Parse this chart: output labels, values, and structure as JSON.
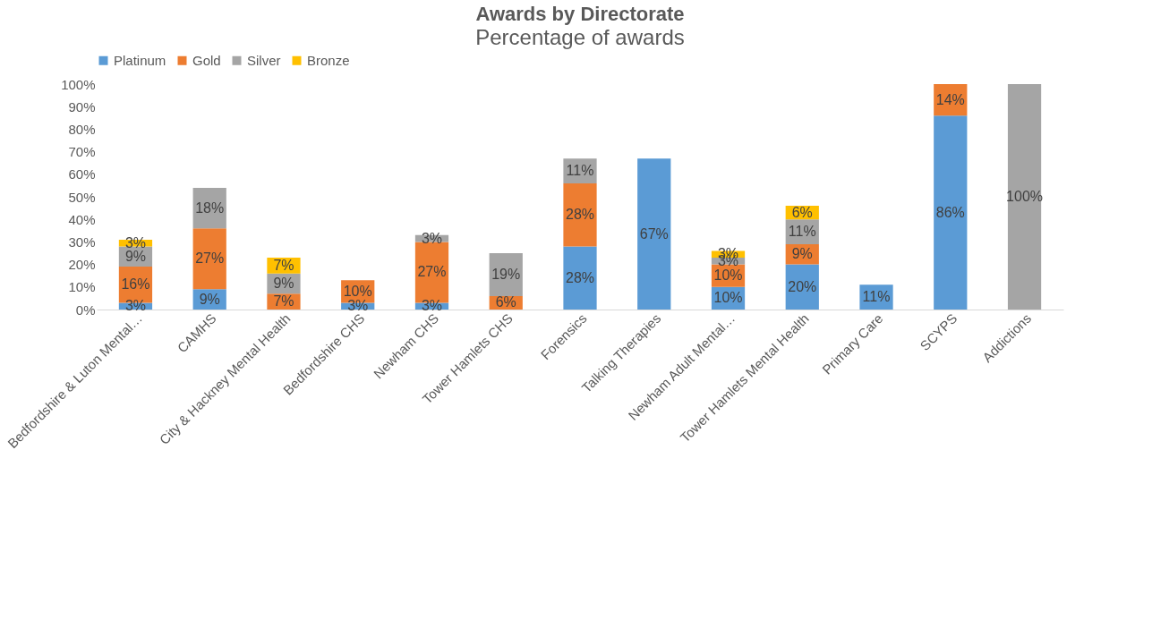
{
  "chart_data": {
    "type": "bar",
    "stacked": true,
    "title": "Awards by Directorate",
    "subtitle": "Percentage of awards",
    "categories": [
      "Bedfordshire & Luton Mental…",
      "CAMHS",
      "City & Hackney Mental Health",
      "Bedfordshire CHS",
      "Newham CHS",
      "Tower Hamlets CHS",
      "Forensics",
      "Talking Therapies",
      "Newham Adult Mental…",
      "Tower Hamlets Mental Health",
      "Primary Care",
      "SCYPS",
      "Addictions"
    ],
    "series": [
      {
        "name": "Platinum",
        "color": "#5b9bd5",
        "values": [
          3,
          9,
          null,
          3,
          3,
          null,
          28,
          67,
          10,
          20,
          11,
          86,
          null
        ],
        "value_labels": [
          "3%",
          "9%",
          null,
          "3%",
          "3%",
          null,
          "28%",
          "67%",
          "10%",
          "20%",
          "11%",
          "86%",
          null
        ]
      },
      {
        "name": "Gold",
        "color": "#ed7d31",
        "values": [
          16,
          27,
          7,
          10,
          27,
          6,
          28,
          null,
          10,
          9,
          null,
          14,
          null
        ],
        "value_labels": [
          "16%",
          "27%",
          "7%",
          "10%",
          "27%",
          "6%",
          "28%",
          null,
          "10%",
          "9%",
          null,
          "14%",
          null
        ]
      },
      {
        "name": "Silver",
        "color": "#a5a5a5",
        "values": [
          9,
          18,
          9,
          null,
          3,
          19,
          11,
          null,
          3,
          11,
          null,
          null,
          100
        ],
        "value_labels": [
          "9%",
          "18%",
          "9%",
          null,
          "3%",
          "19%",
          "11%",
          null,
          "3%",
          "11%",
          null,
          null,
          "100%"
        ]
      },
      {
        "name": "Bronze",
        "color": "#ffc000",
        "values": [
          3,
          null,
          7,
          null,
          null,
          null,
          null,
          null,
          3,
          6,
          null,
          null,
          null
        ],
        "value_labels": [
          "3%",
          null,
          "7%",
          null,
          null,
          null,
          null,
          null,
          "3%",
          "6%",
          null,
          null,
          null
        ]
      }
    ],
    "ylim": [
      0,
      100
    ],
    "yticks": [
      {
        "value": 0,
        "label": "0%"
      },
      {
        "value": 10,
        "label": "10%"
      },
      {
        "value": 20,
        "label": "20%"
      },
      {
        "value": 30,
        "label": "30%"
      },
      {
        "value": 40,
        "label": "40%"
      },
      {
        "value": 50,
        "label": "50%"
      },
      {
        "value": 60,
        "label": "60%"
      },
      {
        "value": 70,
        "label": "70%"
      },
      {
        "value": 80,
        "label": "80%"
      },
      {
        "value": 90,
        "label": "90%"
      },
      {
        "value": 100,
        "label": "100%"
      }
    ],
    "grid": false,
    "legend": "top"
  }
}
